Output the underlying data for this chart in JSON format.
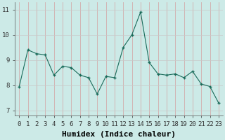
{
  "x": [
    0,
    1,
    2,
    3,
    4,
    5,
    6,
    7,
    8,
    9,
    10,
    11,
    12,
    13,
    14,
    15,
    16,
    17,
    18,
    19,
    20,
    21,
    22,
    23
  ],
  "y": [
    7.95,
    9.4,
    9.25,
    9.2,
    8.4,
    8.75,
    8.7,
    8.4,
    8.3,
    7.65,
    8.35,
    8.3,
    9.5,
    10.0,
    10.9,
    8.9,
    8.45,
    8.4,
    8.45,
    8.3,
    8.55,
    8.05,
    7.95,
    7.3
  ],
  "xlabel": "Humidex (Indice chaleur)",
  "ylim": [
    6.8,
    11.3
  ],
  "xlim": [
    -0.5,
    23.5
  ],
  "line_color": "#1a6b5a",
  "marker": "+",
  "bg_color": "#cceae7",
  "grid_color_v": "#d4a0a0",
  "grid_color_h": "#c8c8c8",
  "tick_label_fontsize": 6.5,
  "xlabel_fontsize": 8,
  "yticks": [
    7,
    8,
    9,
    10,
    11
  ]
}
